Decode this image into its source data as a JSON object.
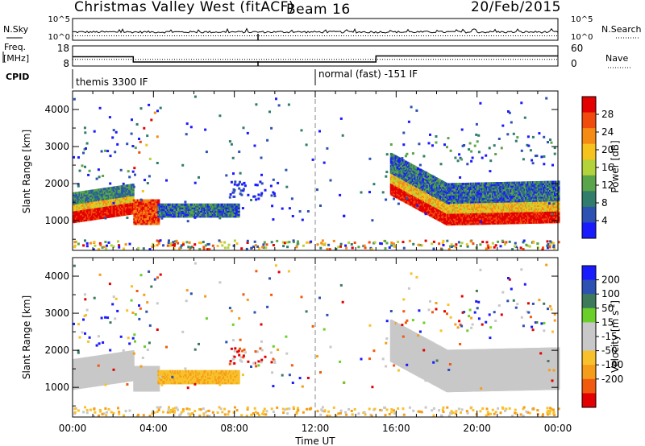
{
  "header": {
    "station": "Christmas Valley West (fitACF)",
    "beam": "Beam 16",
    "date": "20/Feb/2015"
  },
  "left_labels": {
    "nsky": "N.Sky",
    "freq_line1": "Freq.",
    "freq_line2": "[MHz]",
    "cpid": "CPID"
  },
  "right_labels": {
    "nsearch": "N.Search",
    "nave": "Nave"
  },
  "cpid_segments": [
    {
      "label": "themis 3300 IF",
      "start_hour": 0,
      "end_hour": 12
    },
    {
      "label": "normal (fast) -151 IF",
      "start_hour": 12,
      "end_hour": 24
    }
  ],
  "colors": {
    "frame": "#000000",
    "power_scale": [
      "#1a1aff",
      "#2c51b3",
      "#2f7d6a",
      "#5aa44a",
      "#b4d23a",
      "#f6c21e",
      "#f58a15",
      "#f14a0d",
      "#e30000"
    ],
    "velocity_scale": [
      "#1a1aff",
      "#2c51b3",
      "#3d7a5b",
      "#6bcf2a",
      "#c8c8c8",
      "#c8c8c8",
      "#f8c12b",
      "#f59d1a",
      "#f15a0e",
      "#e30000"
    ]
  },
  "chart_data": [
    {
      "id": "nsky-nsearch",
      "type": "line",
      "ylabel_left": "N.Sky",
      "ylabel_right": "N.Search",
      "left_ticks": [
        "10^5",
        "10^0"
      ],
      "right_ticks": [
        "10^5",
        "10^0"
      ],
      "x_hours": [
        0,
        24
      ],
      "log_scale": true
    },
    {
      "id": "freq-nave",
      "type": "line",
      "ylabel_left": "Freq. [MHz]",
      "ylabel_right": "Nave",
      "left_ticks": [
        "18",
        "8"
      ],
      "right_ticks": [
        "60",
        "0"
      ],
      "freq_series": {
        "x": [
          0,
          3,
          3,
          15,
          15,
          24
        ],
        "y": [
          12.6,
          12.6,
          10.0,
          10.0,
          13.0,
          13.0
        ]
      },
      "nave_series": {
        "x": [
          0,
          3,
          3,
          15,
          15,
          24
        ],
        "y": [
          20,
          20,
          20,
          20,
          20,
          20
        ]
      },
      "freq_ylim": [
        8,
        18
      ],
      "nave_ylim": [
        0,
        60
      ]
    },
    {
      "id": "power",
      "type": "heatmap",
      "ylabel": "Slant Range [km]",
      "ylim": [
        200,
        4500
      ],
      "y_ticks": [
        "1000",
        "2000",
        "3000",
        "4000"
      ],
      "colorbar_label": "Power [dB]",
      "colorbar_ticks": [
        "4",
        "8",
        "12",
        "16",
        "20",
        "24",
        "28"
      ],
      "colorbar_range": [
        0,
        32
      ]
    },
    {
      "id": "velocity",
      "type": "heatmap",
      "ylabel": "Slant Range [km]",
      "xlabel": "Time UT",
      "ylim": [
        200,
        4500
      ],
      "y_ticks": [
        "1000",
        "2000",
        "3000",
        "4000"
      ],
      "x_ticks": [
        "00:00",
        "04:00",
        "08:00",
        "12:00",
        "16:00",
        "20:00",
        "00:00"
      ],
      "colorbar_label_main": "Velocity [m s",
      "colorbar_label_sup": "-1",
      "colorbar_label_end": "]",
      "colorbar_ticks": [
        "200",
        "100",
        "50",
        "15",
        "-15",
        "-50",
        "-100",
        "-200"
      ]
    }
  ]
}
